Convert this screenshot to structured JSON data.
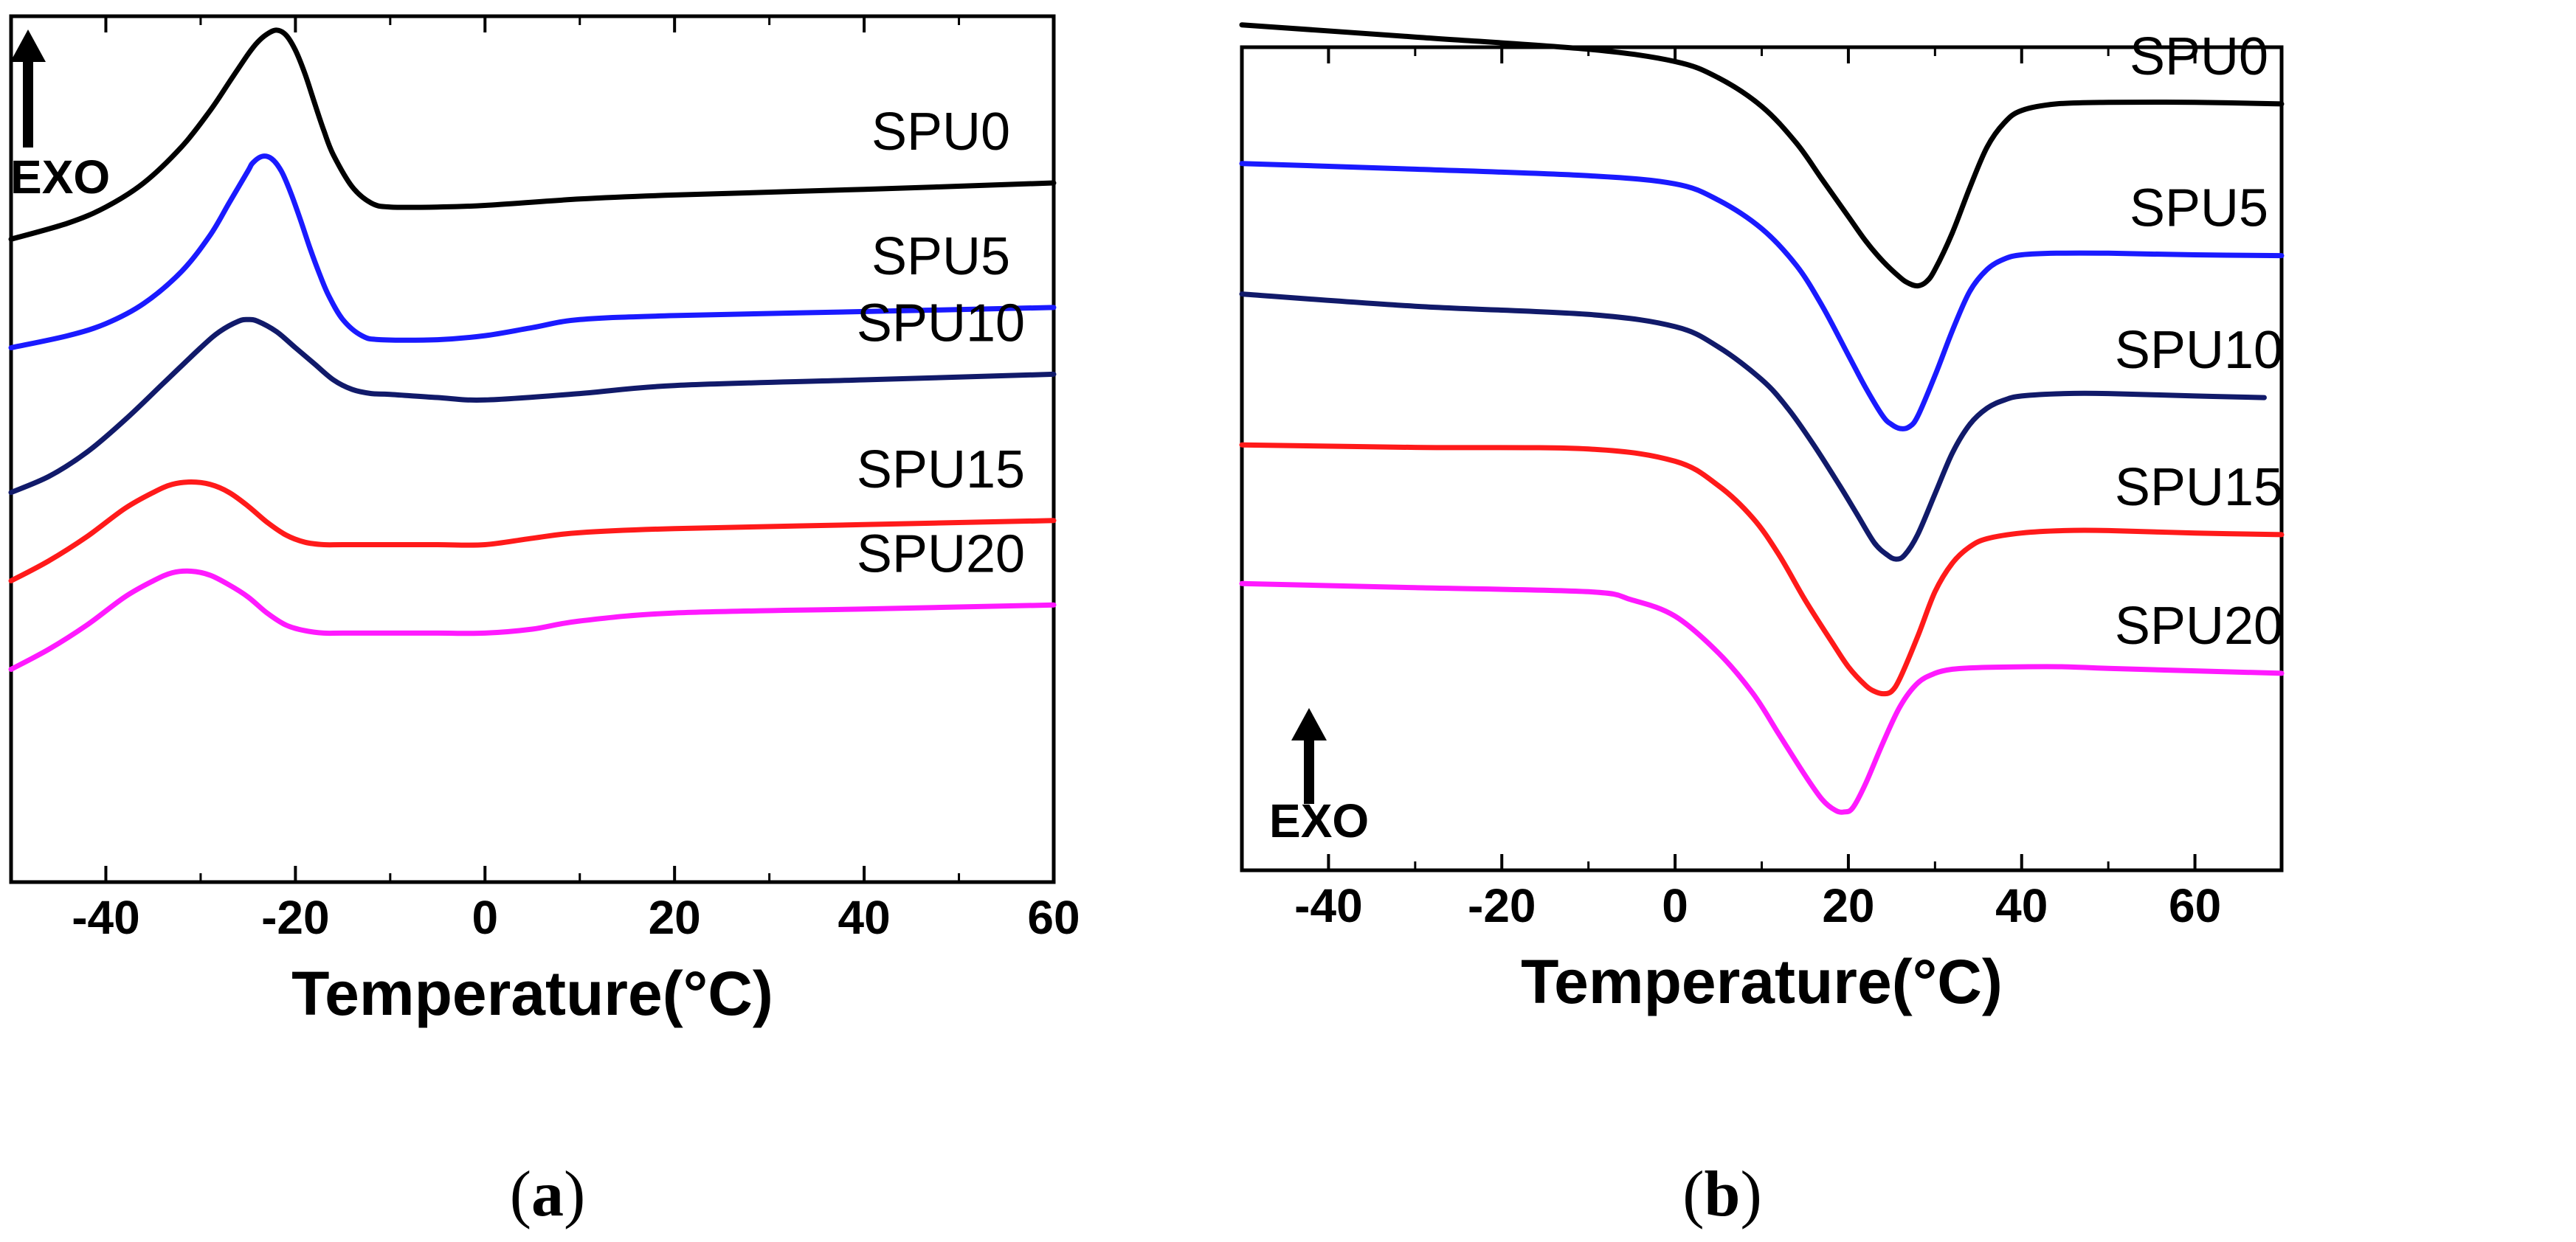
{
  "chart_data": [
    {
      "id": "a",
      "type": "line",
      "caption_letter": "a",
      "xlabel": "Temperature(°C)",
      "ylabel": "",
      "exo_label": "EXO",
      "xlim": [
        -50,
        60
      ],
      "ylim": [
        0,
        100
      ],
      "xticks": [
        -40,
        -20,
        0,
        20,
        40,
        60
      ],
      "xtick_labels": [
        "-40",
        "-20",
        "0",
        "20",
        "40",
        "60"
      ],
      "series": [
        {
          "name": "SPU0",
          "color": "#000000",
          "x": [
            -50,
            -44,
            -40,
            -36,
            -32,
            -29,
            -27,
            -25,
            -24,
            -23,
            -22,
            -21,
            -20,
            -19,
            -18,
            -17,
            -16,
            -14,
            -12,
            -10,
            -5,
            0,
            10,
            20,
            40,
            60
          ],
          "y": [
            73.0,
            75.0,
            77.0,
            80.0,
            84.5,
            89.0,
            92.5,
            96.0,
            97.5,
            98.5,
            99.0,
            98.4,
            96.5,
            93.6,
            90.0,
            86.5,
            83.5,
            79.5,
            77.5,
            77.0,
            77.0,
            77.2,
            78.0,
            78.5,
            79.2,
            80.0
          ]
        },
        {
          "name": "SPU5",
          "color": "#1a1aff",
          "x": [
            -50,
            -44,
            -40,
            -36,
            -32,
            -29,
            -27,
            -25,
            -24.5,
            -23.5,
            -22.5,
            -21.5,
            -20.5,
            -19.5,
            -18.5,
            -17.5,
            -16.5,
            -15,
            -13,
            -11,
            -5,
            0,
            5,
            10,
            20,
            40,
            60
          ],
          "y": [
            59.5,
            61.0,
            62.5,
            65.0,
            69.0,
            73.5,
            77.5,
            81.5,
            82.5,
            83.3,
            83.0,
            81.5,
            78.8,
            75.5,
            72.0,
            68.8,
            66.0,
            63.0,
            61.0,
            60.5,
            60.5,
            61.0,
            62.0,
            63.0,
            63.5,
            64.0,
            64.5
          ]
        },
        {
          "name": "SPU10",
          "color": "#111a6a",
          "x": [
            -50,
            -46,
            -42,
            -38,
            -34,
            -30,
            -28,
            -26,
            -25,
            -24,
            -22,
            -20,
            -18,
            -16,
            -14,
            -12,
            -10,
            -5,
            0,
            10,
            20,
            40,
            60
          ],
          "y": [
            41.5,
            43.5,
            46.5,
            50.5,
            55.0,
            59.5,
            61.5,
            62.8,
            63.0,
            62.8,
            61.5,
            59.5,
            57.5,
            55.5,
            54.3,
            53.8,
            53.7,
            53.3,
            53.0,
            53.8,
            54.8,
            55.5,
            56.2
          ]
        },
        {
          "name": "SPU15",
          "color": "#ff1a1a",
          "x": [
            -50,
            -46,
            -42,
            -38,
            -35,
            -33,
            -31,
            -29,
            -27,
            -25,
            -23,
            -21,
            -19,
            -17,
            -15,
            -10,
            -5,
            0,
            5,
            10,
            20,
            40,
            60
          ],
          "y": [
            30.5,
            33.0,
            36.0,
            39.5,
            41.5,
            42.5,
            42.8,
            42.5,
            41.5,
            39.8,
            37.8,
            36.2,
            35.3,
            35.0,
            35.0,
            35.0,
            35.0,
            35.0,
            35.8,
            36.5,
            37.0,
            37.5,
            38.0
          ]
        },
        {
          "name": "SPU20",
          "color": "#ff1aff",
          "x": [
            -50,
            -46,
            -42,
            -38,
            -35,
            -33,
            -31,
            -29,
            -27,
            -25,
            -23,
            -21,
            -19,
            -17,
            -15,
            -10,
            -5,
            0,
            5,
            10,
            20,
            40,
            60
          ],
          "y": [
            19.5,
            22.0,
            25.0,
            28.5,
            30.5,
            31.5,
            31.7,
            31.2,
            30.0,
            28.5,
            26.5,
            25.0,
            24.3,
            24.0,
            24.0,
            24.0,
            24.0,
            24.0,
            24.5,
            25.5,
            26.5,
            27.0,
            27.5
          ]
        }
      ]
    },
    {
      "id": "b",
      "type": "line",
      "caption_letter": "b",
      "xlabel": "Temperature(°C)",
      "ylabel": "",
      "exo_label": "EXO",
      "xlim": [
        -50,
        70
      ],
      "ylim": [
        0,
        100
      ],
      "xticks": [
        -40,
        -20,
        0,
        20,
        40,
        60
      ],
      "xtick_labels": [
        "-40",
        "-20",
        "0",
        "20",
        "40",
        "60"
      ],
      "series": [
        {
          "name": "SPU0",
          "color": "#000000",
          "x": [
            -50,
            -30,
            -10,
            0,
            5,
            10,
            14,
            17,
            20,
            22,
            24,
            26,
            27,
            28,
            29,
            30,
            32,
            34,
            36,
            38,
            40,
            44,
            50,
            60,
            70
          ],
          "y": [
            97.5,
            96.0,
            94.5,
            93.0,
            91.0,
            87.5,
            83.0,
            78.5,
            74.0,
            71.0,
            68.5,
            66.5,
            65.8,
            65.5,
            66.0,
            67.5,
            72.0,
            77.5,
            82.5,
            85.5,
            87.0,
            87.8,
            88.0,
            88.0,
            87.8
          ]
        },
        {
          "name": "SPU5",
          "color": "#1a1aff",
          "x": [
            -50,
            -30,
            -10,
            0,
            5,
            10,
            14,
            17,
            20,
            22,
            24,
            25,
            26,
            27,
            28,
            30,
            32,
            34,
            36,
            38,
            40,
            44,
            50,
            60,
            70
          ],
          "y": [
            80.5,
            79.8,
            79.0,
            78.0,
            76.0,
            72.5,
            68.0,
            63.0,
            57.0,
            53.0,
            49.5,
            48.5,
            48.0,
            48.2,
            49.5,
            54.5,
            60.0,
            64.8,
            67.5,
            68.8,
            69.3,
            69.5,
            69.5,
            69.3,
            69.2
          ]
        },
        {
          "name": "SPU10",
          "color": "#111a6a",
          "x": [
            -50,
            -30,
            -10,
            0,
            5,
            10,
            13,
            16,
            19,
            21,
            23,
            24.5,
            25.5,
            26.5,
            28,
            30,
            32,
            34,
            36,
            38,
            40,
            45,
            50,
            60,
            68
          ],
          "y": [
            64.5,
            63.0,
            62.0,
            60.5,
            58.0,
            54.0,
            50.5,
            46.0,
            41.0,
            37.5,
            34.0,
            32.5,
            32.0,
            32.5,
            35.0,
            40.0,
            45.0,
            48.5,
            50.5,
            51.5,
            52.0,
            52.3,
            52.3,
            52.0,
            51.8
          ]
        },
        {
          "name": "SPU15",
          "color": "#ff1a1a",
          "x": [
            -50,
            -30,
            -10,
            0,
            5,
            9,
            12,
            15,
            18,
            20,
            22,
            23,
            24,
            25,
            26,
            28,
            30,
            32,
            34,
            36,
            40,
            45,
            50,
            60,
            70
          ],
          "y": [
            46.0,
            45.7,
            45.5,
            44.0,
            41.0,
            37.0,
            32.5,
            27.0,
            22.0,
            18.8,
            16.5,
            15.8,
            15.5,
            15.8,
            17.5,
            22.5,
            28.0,
            31.5,
            33.5,
            34.5,
            35.2,
            35.5,
            35.5,
            35.2,
            35.0
          ]
        },
        {
          "name": "SPU20",
          "color": "#ff1aff",
          "x": [
            -50,
            -30,
            -10,
            -5,
            0,
            5,
            9,
            12,
            15,
            17,
            18.5,
            19.5,
            20.5,
            22,
            24,
            26,
            28,
            30,
            32,
            35,
            40,
            45,
            50,
            60,
            70
          ],
          "y": [
            29.0,
            28.5,
            28.0,
            27.0,
            25.0,
            20.5,
            15.5,
            10.5,
            5.5,
            2.5,
            1.2,
            1.0,
            1.5,
            4.5,
            9.5,
            14.0,
            16.8,
            18.0,
            18.5,
            18.7,
            18.8,
            18.8,
            18.6,
            18.3,
            18.0
          ]
        }
      ]
    }
  ]
}
